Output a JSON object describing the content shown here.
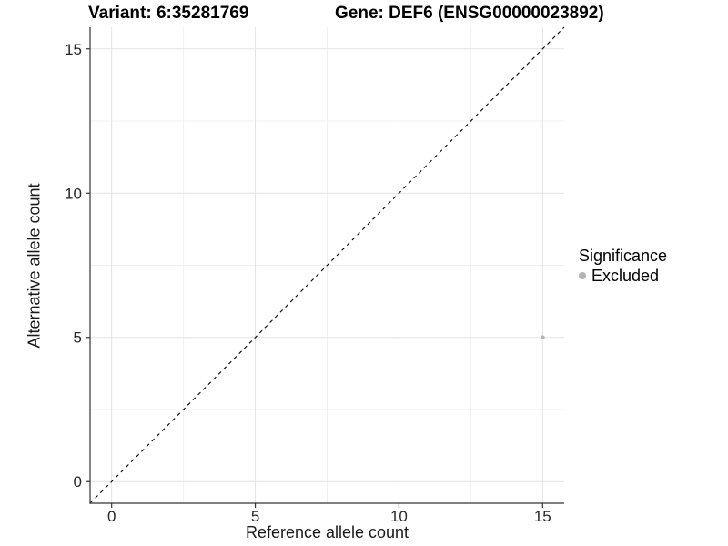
{
  "chart_data": {
    "type": "scatter",
    "titles": {
      "left": "Variant: 6:35281769",
      "right": "Gene: DEF6 (ENSG00000023892)"
    },
    "xlabel": "Reference allele count",
    "ylabel": "Alternative allele count",
    "xlim": [
      -0.75,
      15.75
    ],
    "ylim": [
      -0.75,
      15.75
    ],
    "x_ticks": [
      0,
      5,
      10,
      15
    ],
    "y_ticks": [
      0,
      5,
      10,
      15
    ],
    "x_minor_ticks": [
      2.5,
      7.5,
      12.5
    ],
    "y_minor_ticks": [
      2.5,
      7.5,
      12.5
    ],
    "grid": true,
    "legend_position": "right",
    "points": [
      {
        "x": 15,
        "y": 5,
        "series": "Excluded"
      }
    ],
    "reference_line": {
      "slope": 1,
      "intercept": 0,
      "style": "dashed",
      "color": "#000000"
    },
    "legend": {
      "title": "Significance",
      "items": [
        {
          "label": "Excluded",
          "color": "#b3b3b3"
        }
      ]
    },
    "colors": {
      "background": "#ffffff",
      "axis": "#333333",
      "grid_major": "#e3e3e3",
      "grid_minor": "#f0f0f0",
      "tick_text": "#262626",
      "point": "#b3b3b3"
    }
  }
}
